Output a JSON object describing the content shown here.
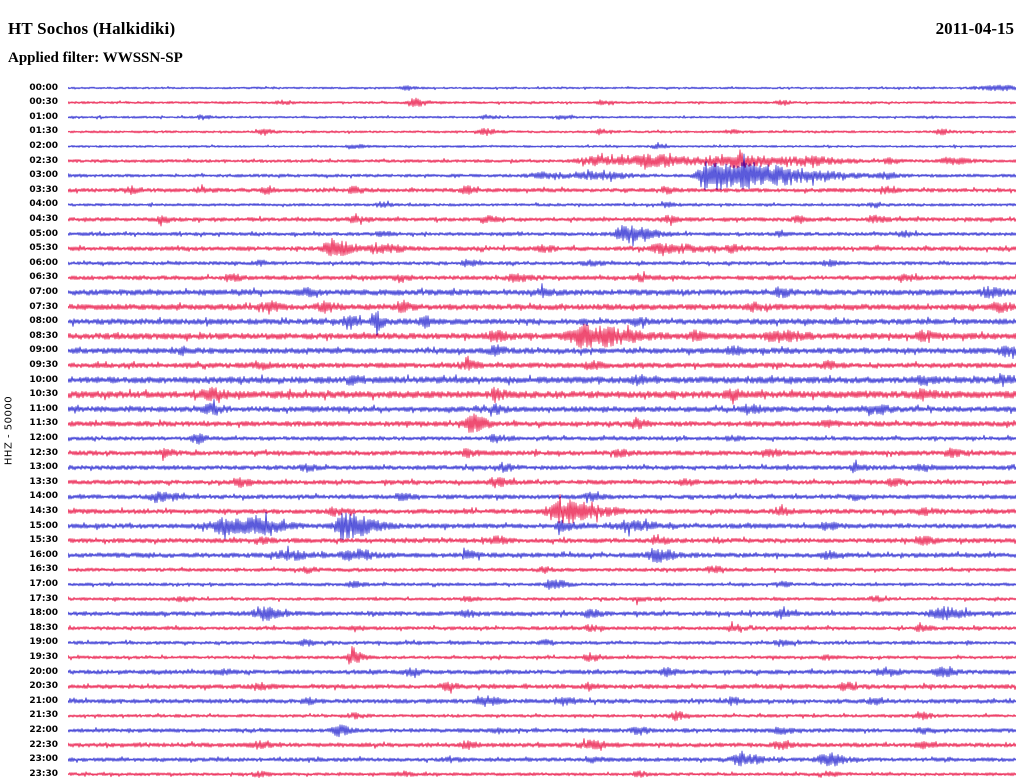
{
  "header": {
    "station_title": "HT Sochos (Halkidiki)",
    "date": "2011-04-15",
    "filter_label": "Applied filter: WWSSN-SP"
  },
  "chart_data": {
    "type": "line",
    "subtype": "helicorder-seismogram",
    "title": "HT Sochos (Halkidiki)",
    "date": "2011-04-15",
    "filter": "WWSSN-SP",
    "ylabel": "HHZ - 50000",
    "channel": "HHZ",
    "gain_scale": 50000,
    "minutes_per_line": 30,
    "first_line_time": "00:00",
    "last_line_time": "23:30",
    "line_count": 48,
    "grid": false,
    "legend": false,
    "colors": {
      "r": "#e80036",
      "b": "#1414cc",
      "text": "#000000",
      "background": "#ffffff"
    },
    "rows": [
      {
        "t": "00:00",
        "c": "b",
        "n": 1.1,
        "ev": [
          [
            0.355,
            1.8
          ],
          [
            0.975,
            2.2,
            0.02
          ]
        ]
      },
      {
        "t": "00:30",
        "c": "r",
        "n": 1.3,
        "ev": [
          [
            0.225,
            1.8
          ],
          [
            0.365,
            3.5,
            0.007
          ],
          [
            0.56,
            1.6
          ],
          [
            0.75,
            1.8
          ]
        ]
      },
      {
        "t": "01:00",
        "c": "b",
        "n": 1.2,
        "ev": [
          [
            0.14,
            1.8
          ],
          [
            0.44,
            1.6
          ],
          [
            0.52,
            1.8
          ]
        ]
      },
      {
        "t": "01:30",
        "c": "r",
        "n": 1.3,
        "ev": [
          [
            0.205,
            2.2
          ],
          [
            0.44,
            3.0,
            0.007
          ],
          [
            0.56,
            2.2
          ],
          [
            0.7,
            1.8
          ],
          [
            0.92,
            2.2
          ]
        ]
      },
      {
        "t": "02:00",
        "c": "b",
        "n": 1.2,
        "ev": [
          [
            0.3,
            1.8
          ],
          [
            0.62,
            1.6
          ]
        ]
      },
      {
        "t": "02:30",
        "c": "r",
        "n": 1.7,
        "ev": [
          [
            0.555,
            3.5,
            0.02
          ],
          [
            0.615,
            5.0,
            0.025
          ],
          [
            0.7,
            5.5,
            0.03
          ],
          [
            0.78,
            3.0,
            0.02
          ],
          [
            0.865,
            2.5
          ],
          [
            0.93,
            3.0,
            0.01
          ]
        ]
      },
      {
        "t": "03:00",
        "c": "b",
        "n": 1.7,
        "ev": [
          [
            0.5,
            2.5,
            0.015
          ],
          [
            0.555,
            3.0,
            0.02
          ],
          [
            0.675,
            15.0,
            0.012,
            6
          ],
          [
            0.86,
            2.2
          ]
        ]
      },
      {
        "t": "03:30",
        "c": "r",
        "n": 2.1,
        "ev": [
          [
            0.065,
            2.8
          ],
          [
            0.14,
            2.4
          ],
          [
            0.21,
            2.8
          ],
          [
            0.3,
            2.6
          ],
          [
            0.42,
            2.8
          ],
          [
            0.63,
            2.4
          ],
          [
            0.86,
            2.8
          ]
        ]
      },
      {
        "t": "04:00",
        "c": "b",
        "n": 1.5,
        "ev": [
          [
            0.33,
            2.2
          ],
          [
            0.63,
            1.8
          ],
          [
            0.85,
            2.0
          ]
        ]
      },
      {
        "t": "04:30",
        "c": "r",
        "n": 2.1,
        "ev": [
          [
            0.1,
            2.4
          ],
          [
            0.3,
            2.2
          ],
          [
            0.44,
            2.8
          ],
          [
            0.63,
            2.4
          ],
          [
            0.77,
            2.4
          ],
          [
            0.85,
            2.8
          ]
        ]
      },
      {
        "t": "05:00",
        "c": "b",
        "n": 1.9,
        "ev": [
          [
            0.33,
            2.2
          ],
          [
            0.585,
            7.5,
            0.008,
            3
          ],
          [
            0.75,
            2.4
          ],
          [
            0.88,
            2.2
          ]
        ]
      },
      {
        "t": "05:30",
        "c": "r",
        "n": 2.3,
        "ev": [
          [
            0.275,
            8.5,
            0.006,
            2.5
          ],
          [
            0.33,
            3.0,
            0.015
          ],
          [
            0.5,
            2.8
          ],
          [
            0.63,
            3.5,
            0.02
          ],
          [
            0.7,
            3.0
          ]
        ]
      },
      {
        "t": "06:00",
        "c": "b",
        "n": 1.9,
        "ev": [
          [
            0.2,
            2.2
          ],
          [
            0.42,
            2.4
          ],
          [
            0.55,
            2.4
          ],
          [
            0.8,
            2.2
          ]
        ]
      },
      {
        "t": "06:30",
        "c": "r",
        "n": 2.3,
        "ev": [
          [
            0.17,
            2.8
          ],
          [
            0.35,
            2.6
          ],
          [
            0.47,
            3.5,
            0.008
          ],
          [
            0.6,
            2.8
          ],
          [
            0.88,
            2.8
          ]
        ]
      },
      {
        "t": "07:00",
        "c": "b",
        "n": 3.0,
        "ev": [
          [
            0.25,
            2.8
          ],
          [
            0.5,
            3.0
          ],
          [
            0.75,
            3.0
          ],
          [
            0.97,
            3.5,
            0.008
          ]
        ]
      },
      {
        "t": "07:30",
        "c": "r",
        "n": 3.0,
        "ev": [
          [
            0.21,
            4.5,
            0.006
          ],
          [
            0.27,
            3.5,
            0.008
          ],
          [
            0.35,
            3.5
          ],
          [
            0.72,
            3.0
          ],
          [
            0.98,
            3.5,
            0.006
          ]
        ]
      },
      {
        "t": "08:00",
        "c": "b",
        "n": 3.0,
        "ev": [
          [
            0.295,
            6.0,
            0.005
          ],
          [
            0.325,
            6.5,
            0.005
          ],
          [
            0.375,
            4.5,
            0.005
          ],
          [
            0.6,
            3.0
          ]
        ]
      },
      {
        "t": "08:30",
        "c": "r",
        "n": 3.2,
        "ev": [
          [
            0.45,
            3.5,
            0.008
          ],
          [
            0.545,
            9.5,
            0.018,
            2
          ],
          [
            0.66,
            3.2
          ],
          [
            0.75,
            3.5,
            0.015
          ],
          [
            0.9,
            3.2
          ]
        ]
      },
      {
        "t": "09:00",
        "c": "b",
        "n": 3.0,
        "ev": [
          [
            0.12,
            3.0
          ],
          [
            0.45,
            3.0
          ],
          [
            0.7,
            3.0
          ],
          [
            0.99,
            4.5,
            0.005
          ]
        ]
      },
      {
        "t": "09:30",
        "c": "r",
        "n": 2.7,
        "ev": [
          [
            0.2,
            2.8
          ],
          [
            0.42,
            3.5,
            0.007
          ],
          [
            0.55,
            3.0
          ],
          [
            0.8,
            2.8
          ]
        ]
      },
      {
        "t": "10:00",
        "c": "b",
        "n": 3.4,
        "ev": [
          [
            0.3,
            3.0
          ],
          [
            0.6,
            3.2
          ],
          [
            0.9,
            3.2
          ],
          [
            0.985,
            3.6,
            0.008
          ]
        ]
      },
      {
        "t": "10:30",
        "c": "r",
        "n": 3.6,
        "ev": [
          [
            0.15,
            4.0,
            0.008
          ],
          [
            0.45,
            3.4
          ],
          [
            0.7,
            3.4
          ],
          [
            0.9,
            3.4
          ]
        ]
      },
      {
        "t": "11:00",
        "c": "b",
        "n": 2.9,
        "ev": [
          [
            0.15,
            3.6,
            0.007
          ],
          [
            0.45,
            3.0
          ],
          [
            0.72,
            3.0
          ],
          [
            0.85,
            3.6,
            0.008
          ]
        ]
      },
      {
        "t": "11:30",
        "c": "r",
        "n": 2.7,
        "ev": [
          [
            0.425,
            8.0,
            0.006,
            1.8
          ],
          [
            0.6,
            3.0
          ],
          [
            0.8,
            2.8
          ]
        ]
      },
      {
        "t": "12:00",
        "c": "b",
        "n": 2.1,
        "ev": [
          [
            0.135,
            4.5,
            0.005
          ],
          [
            0.45,
            2.8,
            0.007
          ],
          [
            0.7,
            2.2
          ]
        ]
      },
      {
        "t": "12:30",
        "c": "r",
        "n": 2.5,
        "ev": [
          [
            0.1,
            2.8
          ],
          [
            0.42,
            2.8
          ],
          [
            0.58,
            2.6
          ],
          [
            0.74,
            2.8
          ],
          [
            0.93,
            2.8
          ]
        ]
      },
      {
        "t": "13:00",
        "c": "b",
        "n": 2.3,
        "ev": [
          [
            0.25,
            2.6
          ],
          [
            0.46,
            2.8
          ],
          [
            0.83,
            2.8
          ],
          [
            0.9,
            2.8
          ]
        ]
      },
      {
        "t": "13:30",
        "c": "r",
        "n": 2.3,
        "ev": [
          [
            0.18,
            3.5,
            0.007
          ],
          [
            0.45,
            3.5,
            0.008
          ],
          [
            0.65,
            2.6
          ],
          [
            0.87,
            2.8
          ]
        ]
      },
      {
        "t": "14:00",
        "c": "b",
        "n": 2.3,
        "ev": [
          [
            0.095,
            4.5,
            0.01
          ],
          [
            0.35,
            2.6
          ],
          [
            0.55,
            2.8
          ],
          [
            0.83,
            2.6
          ]
        ]
      },
      {
        "t": "14:30",
        "c": "r",
        "n": 2.5,
        "ev": [
          [
            0.28,
            2.8
          ],
          [
            0.52,
            10.0,
            0.016,
            2
          ],
          [
            0.75,
            2.8
          ],
          [
            0.9,
            2.6
          ]
        ]
      },
      {
        "t": "15:00",
        "c": "b",
        "n": 2.5,
        "ev": [
          [
            0.165,
            6.5,
            0.02
          ],
          [
            0.2,
            5.5,
            0.015
          ],
          [
            0.29,
            12.0,
            0.009,
            2.5
          ],
          [
            0.52,
            3.5,
            0.008
          ],
          [
            0.59,
            4.5,
            0.014
          ],
          [
            0.8,
            2.8
          ]
        ]
      },
      {
        "t": "15:30",
        "c": "r",
        "n": 2.5,
        "ev": [
          [
            0.2,
            2.8
          ],
          [
            0.45,
            2.8
          ],
          [
            0.62,
            3.0
          ],
          [
            0.9,
            3.5,
            0.008
          ]
        ]
      },
      {
        "t": "16:00",
        "c": "b",
        "n": 2.5,
        "ev": [
          [
            0.23,
            3.5,
            0.015
          ],
          [
            0.3,
            4.5,
            0.012
          ],
          [
            0.42,
            3.0
          ],
          [
            0.62,
            5.5,
            0.01
          ],
          [
            0.8,
            2.8
          ]
        ]
      },
      {
        "t": "16:30",
        "c": "r",
        "n": 1.9,
        "ev": [
          [
            0.25,
            2.2
          ],
          [
            0.5,
            2.2
          ],
          [
            0.68,
            2.8,
            0.007
          ]
        ]
      },
      {
        "t": "17:00",
        "c": "b",
        "n": 1.7,
        "ev": [
          [
            0.3,
            2.0
          ],
          [
            0.51,
            4.5,
            0.008
          ],
          [
            0.75,
            2.0
          ]
        ]
      },
      {
        "t": "17:30",
        "c": "r",
        "n": 1.7,
        "ev": [
          [
            0.12,
            2.2
          ],
          [
            0.42,
            2.0
          ],
          [
            0.6,
            2.2
          ],
          [
            0.85,
            2.0
          ]
        ]
      },
      {
        "t": "18:00",
        "c": "b",
        "n": 2.3,
        "ev": [
          [
            0.205,
            5.5,
            0.01
          ],
          [
            0.42,
            2.8
          ],
          [
            0.55,
            3.0
          ],
          [
            0.75,
            2.8
          ],
          [
            0.92,
            6.0,
            0.012
          ]
        ]
      },
      {
        "t": "18:30",
        "c": "r",
        "n": 1.9,
        "ev": [
          [
            0.3,
            2.2
          ],
          [
            0.55,
            2.2
          ],
          [
            0.7,
            2.4
          ],
          [
            0.9,
            2.2
          ]
        ]
      },
      {
        "t": "19:00",
        "c": "b",
        "n": 1.9,
        "ev": [
          [
            0.25,
            2.2
          ],
          [
            0.5,
            2.2
          ],
          [
            0.75,
            2.2
          ]
        ]
      },
      {
        "t": "19:30",
        "c": "r",
        "n": 1.7,
        "ev": [
          [
            0.3,
            5.5,
            0.006
          ],
          [
            0.55,
            2.8,
            0.007
          ],
          [
            0.8,
            2.0
          ]
        ]
      },
      {
        "t": "20:00",
        "c": "b",
        "n": 2.3,
        "ev": [
          [
            0.16,
            2.6
          ],
          [
            0.36,
            2.8
          ],
          [
            0.63,
            2.8
          ],
          [
            0.86,
            3.5,
            0.008
          ],
          [
            0.92,
            3.5,
            0.008
          ]
        ]
      },
      {
        "t": "20:30",
        "c": "r",
        "n": 2.3,
        "ev": [
          [
            0.2,
            2.6
          ],
          [
            0.4,
            2.6
          ],
          [
            0.55,
            2.8
          ],
          [
            0.82,
            2.8
          ]
        ]
      },
      {
        "t": "21:00",
        "c": "b",
        "n": 2.3,
        "ev": [
          [
            0.25,
            2.6
          ],
          [
            0.44,
            3.5,
            0.008
          ],
          [
            0.52,
            3.5,
            0.008
          ],
          [
            0.7,
            2.6
          ],
          [
            0.85,
            2.8
          ]
        ]
      },
      {
        "t": "21:30",
        "c": "r",
        "n": 1.7,
        "ev": [
          [
            0.3,
            2.0
          ],
          [
            0.64,
            3.5,
            0.006
          ],
          [
            0.9,
            2.6
          ]
        ]
      },
      {
        "t": "22:00",
        "c": "b",
        "n": 2.1,
        "ev": [
          [
            0.285,
            5.5,
            0.006
          ],
          [
            0.45,
            2.4
          ],
          [
            0.6,
            2.6
          ],
          [
            0.75,
            2.6
          ],
          [
            0.9,
            2.4
          ]
        ]
      },
      {
        "t": "22:30",
        "c": "r",
        "n": 2.3,
        "ev": [
          [
            0.2,
            2.8
          ],
          [
            0.42,
            2.6
          ],
          [
            0.55,
            3.5,
            0.01
          ],
          [
            0.75,
            2.8
          ],
          [
            0.9,
            2.6
          ]
        ]
      },
      {
        "t": "23:00",
        "c": "b",
        "n": 2.1,
        "ev": [
          [
            0.4,
            2.4
          ],
          [
            0.55,
            2.6
          ],
          [
            0.71,
            5.5,
            0.01
          ],
          [
            0.8,
            5.5,
            0.01
          ]
        ]
      },
      {
        "t": "23:30",
        "c": "r",
        "n": 1.7,
        "ev": [
          [
            0.2,
            2.0
          ],
          [
            0.35,
            2.2
          ],
          [
            0.6,
            2.2
          ],
          [
            0.8,
            2.0
          ]
        ]
      }
    ]
  }
}
